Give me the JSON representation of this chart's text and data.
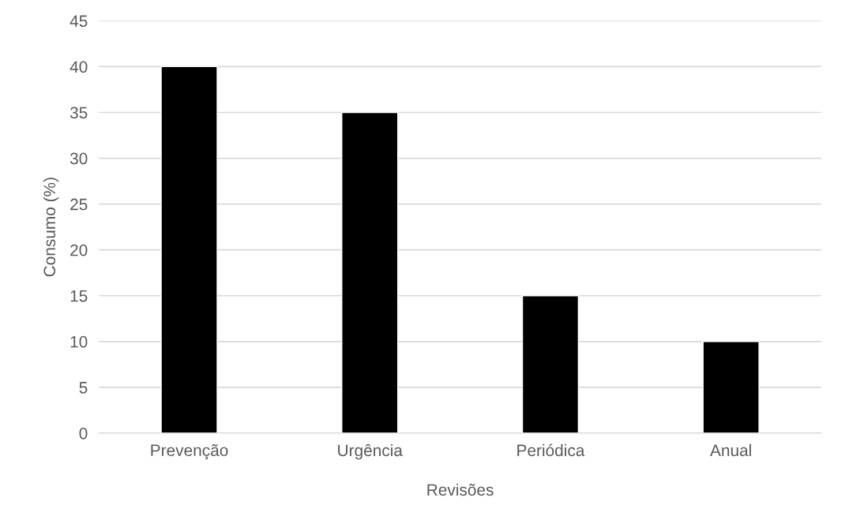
{
  "chart_data": {
    "type": "bar",
    "xlabel": "Revisões",
    "ylabel": "Consumo (%)",
    "categories": [
      "Prevenção",
      "Urgência",
      "Periódica",
      "Anual"
    ],
    "values": [
      40,
      35,
      15,
      10
    ],
    "color": "#000000",
    "ylim": [
      0,
      45
    ],
    "yticks": [
      0,
      5,
      10,
      15,
      20,
      25,
      30,
      35,
      40,
      45
    ],
    "grid": "y",
    "legend": false
  }
}
